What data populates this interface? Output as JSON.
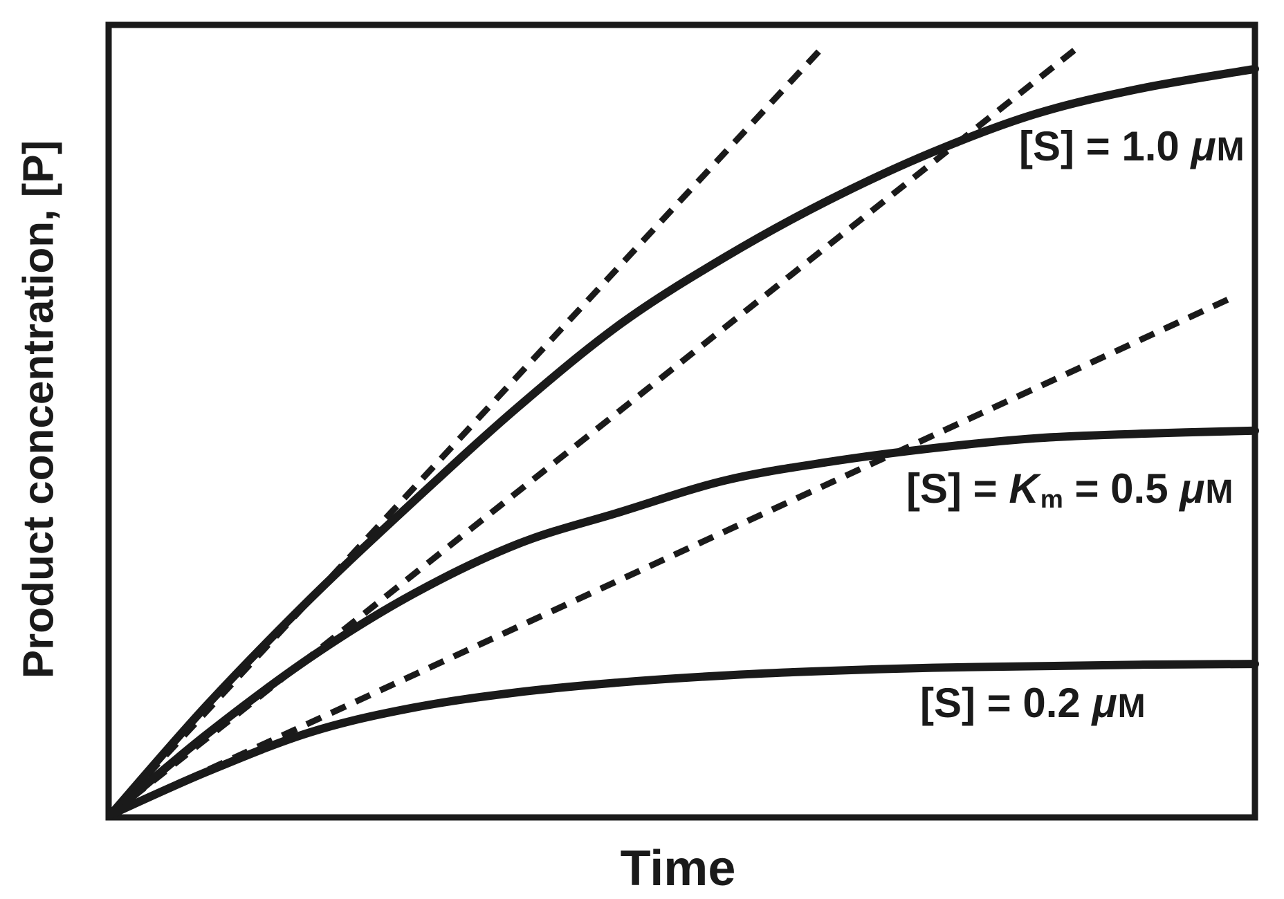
{
  "colors": {
    "ink": "#1a1a1a",
    "background": "#ffffff"
  },
  "chart_data": {
    "type": "line",
    "title": "",
    "xlabel": "Time",
    "ylabel": "Product concentration, [P]",
    "x_ticks": [],
    "y_ticks": [],
    "frame": "full rectangular box, no tick marks, qualitative axes",
    "legend_position": "labels next to curves",
    "km_uM": 0.5,
    "note": "Product units normalized so the [S] = 1.0 uM curve approaches 1.0; time normalized 0-1 across plot width",
    "series": [
      {
        "name": "[S] = 1.0 μM",
        "substrate_concentration_uM": 1.0,
        "line_style": "solid",
        "points": [
          [
            0,
            0
          ],
          [
            0.084,
            0.143
          ],
          [
            0.175,
            0.283
          ],
          [
            0.265,
            0.41
          ],
          [
            0.356,
            0.533
          ],
          [
            0.446,
            0.642
          ],
          [
            0.537,
            0.729
          ],
          [
            0.627,
            0.803
          ],
          [
            0.718,
            0.866
          ],
          [
            0.808,
            0.916
          ],
          [
            0.899,
            0.949
          ],
          [
            1.0,
            0.975
          ]
        ]
      },
      {
        "name": "[S] = Km = 0.5 μM",
        "substrate_concentration_uM": 0.5,
        "line_style": "solid",
        "points": [
          [
            0,
            0
          ],
          [
            0.084,
            0.105
          ],
          [
            0.175,
            0.206
          ],
          [
            0.265,
            0.289
          ],
          [
            0.356,
            0.354
          ],
          [
            0.446,
            0.396
          ],
          [
            0.537,
            0.437
          ],
          [
            0.627,
            0.461
          ],
          [
            0.718,
            0.479
          ],
          [
            0.808,
            0.492
          ],
          [
            0.899,
            0.498
          ],
          [
            1.0,
            0.502
          ]
        ]
      },
      {
        "name": "[S] = 0.2 μM",
        "substrate_concentration_uM": 0.2,
        "line_style": "solid",
        "points": [
          [
            0,
            0
          ],
          [
            0.084,
            0.056
          ],
          [
            0.175,
            0.108
          ],
          [
            0.265,
            0.14
          ],
          [
            0.356,
            0.16
          ],
          [
            0.446,
            0.173
          ],
          [
            0.537,
            0.182
          ],
          [
            0.627,
            0.188
          ],
          [
            0.718,
            0.192
          ],
          [
            0.808,
            0.194
          ],
          [
            0.899,
            0.196
          ],
          [
            1.0,
            0.197
          ]
        ]
      }
    ],
    "tangent_lines": [
      {
        "for_series": "[S] = 1.0 μM",
        "line_style": "dashed",
        "meaning": "initial velocity v0",
        "from": [
          0,
          0
        ],
        "to": [
          0.622,
          1.003
        ]
      },
      {
        "for_series": "[S] = Km = 0.5 μM",
        "line_style": "dashed",
        "meaning": "initial velocity v0",
        "from": [
          0,
          0
        ],
        "to": [
          0.846,
          1.004
        ]
      },
      {
        "for_series": "[S] = 0.2 μM",
        "line_style": "dashed",
        "meaning": "initial velocity v0",
        "from": [
          0,
          0
        ],
        "to": [
          0.983,
          0.678
        ]
      }
    ]
  },
  "labels": {
    "s10": {
      "pre": "[S] = 1.0 ",
      "mu": "μ",
      "unit": "M"
    },
    "s05": {
      "pre": "[S] = ",
      "k": "K",
      "k_sub": "m",
      "mid": " = 0.5 ",
      "mu": "μ",
      "unit": "M"
    },
    "s02": {
      "pre": "[S] = 0.2 ",
      "mu": "μ",
      "unit": "M"
    }
  }
}
